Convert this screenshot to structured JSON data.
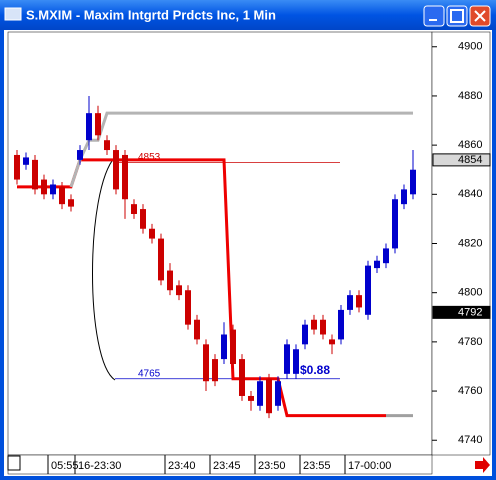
{
  "window": {
    "title": "S.MXIM - Maxim Intgrtd Prdcts Inc, 1 Min"
  },
  "chart_data": {
    "type": "candlestick",
    "categories": [
      null,
      null,
      null,
      null,
      "05:55",
      null,
      null,
      "16-23:30",
      null,
      null,
      null,
      null,
      null,
      null,
      null,
      null,
      null,
      "23:40",
      null,
      null,
      null,
      null,
      "23:45",
      null,
      null,
      null,
      null,
      "23:50",
      null,
      null,
      null,
      null,
      "23:55",
      null,
      null,
      null,
      null,
      "17-00:00",
      null,
      null,
      null,
      null,
      null,
      null,
      null
    ],
    "open": [
      4856,
      4852,
      4854,
      4846,
      4840,
      4843,
      4838,
      4854,
      4862,
      4873,
      4862,
      4858,
      4856,
      4836,
      4834,
      4826,
      4822,
      4809,
      4803,
      4801,
      4789,
      4779,
      4773,
      4773,
      4785,
      4773,
      4758,
      4754,
      4765,
      4754,
      4767,
      4767,
      4779,
      4789,
      4789,
      4781,
      4781,
      4793,
      4799,
      4791,
      4810,
      4812,
      4818,
      4836,
      4840
    ],
    "high": [
      4858,
      4857,
      4856,
      4848,
      4846,
      4845,
      4840,
      4860,
      4880,
      4876,
      4864,
      4860,
      4858,
      4838,
      4836,
      4828,
      4824,
      4812,
      4805,
      4803,
      4791,
      4781,
      4775,
      4788,
      4787,
      4775,
      4760,
      4766,
      4767,
      4766,
      4781,
      4779,
      4789,
      4791,
      4791,
      4783,
      4795,
      4801,
      4801,
      4813,
      4815,
      4820,
      4840,
      4844,
      4858
    ],
    "low": [
      4844,
      4850,
      4840,
      4838,
      4838,
      4834,
      4833,
      4852,
      4858,
      4862,
      4856,
      4840,
      4830,
      4830,
      4824,
      4820,
      4803,
      4799,
      4797,
      4785,
      4779,
      4760,
      4762,
      4771,
      4769,
      4756,
      4752,
      4752,
      4749,
      4752,
      4765,
      4765,
      4777,
      4783,
      4781,
      4775,
      4779,
      4791,
      4792,
      4789,
      4808,
      4810,
      4816,
      4834,
      4838
    ],
    "close": [
      4846,
      4855,
      4842,
      4840,
      4844,
      4836,
      4835,
      4858,
      4873,
      4864,
      4858,
      4842,
      4838,
      4832,
      4826,
      4822,
      4805,
      4801,
      4799,
      4787,
      4781,
      4764,
      4764,
      4783,
      4771,
      4758,
      4756,
      4764,
      4751,
      4764,
      4779,
      4777,
      4787,
      4785,
      4783,
      4779,
      4793,
      4799,
      4794,
      4811,
      4813,
      4818,
      4838,
      4842,
      4850
    ],
    "up_color": "#0000cc",
    "down_color": "#cc0000",
    "overlays": [
      {
        "color": "#ee0000",
        "values": [
          4843,
          4843,
          4843,
          4843,
          4843,
          4843,
          4843,
          4854,
          4854,
          4854,
          4854,
          4854,
          4854,
          4854,
          4854,
          4854,
          4854,
          4854,
          4854,
          4854,
          4854,
          4854,
          4854,
          4854,
          4765,
          4765,
          4765,
          4765,
          4765,
          4765,
          4750,
          4750,
          4750,
          4750,
          4750,
          4750,
          4750,
          4750,
          4750,
          4750,
          4750,
          4750,
          null,
          null,
          null
        ]
      },
      {
        "color": "#b4b4b4",
        "values": [
          null,
          null,
          null,
          null,
          null,
          null,
          4843,
          4854,
          4862,
          4862,
          4873,
          4873,
          4873,
          4873,
          4873,
          4873,
          4873,
          4873,
          4873,
          4873,
          4873,
          4873,
          4873,
          4873,
          4873,
          4873,
          4873,
          4873,
          4873,
          4873,
          4873,
          4873,
          4873,
          4873,
          4873,
          4873,
          4873,
          4873,
          4873,
          4873,
          4873,
          4873,
          4873,
          4873,
          4873
        ]
      },
      {
        "color": "#a0a0a0",
        "values": [
          null,
          null,
          null,
          null,
          null,
          null,
          null,
          null,
          null,
          null,
          null,
          null,
          null,
          null,
          null,
          null,
          null,
          null,
          null,
          null,
          null,
          null,
          null,
          null,
          null,
          null,
          null,
          null,
          null,
          null,
          null,
          null,
          null,
          null,
          null,
          null,
          null,
          null,
          null,
          null,
          null,
          4750,
          4750,
          4750,
          4750
        ]
      }
    ],
    "levels": [
      {
        "value": 4853,
        "color": "#cc0000"
      },
      {
        "value": 4765,
        "color": "#0000cc"
      }
    ],
    "annotation": "$0.88",
    "price_markers": [
      4854,
      4792
    ],
    "ylim": [
      4734,
      4906
    ],
    "yticks": [
      4740,
      4760,
      4780,
      4800,
      4820,
      4840,
      4860,
      4880,
      4900
    ]
  }
}
